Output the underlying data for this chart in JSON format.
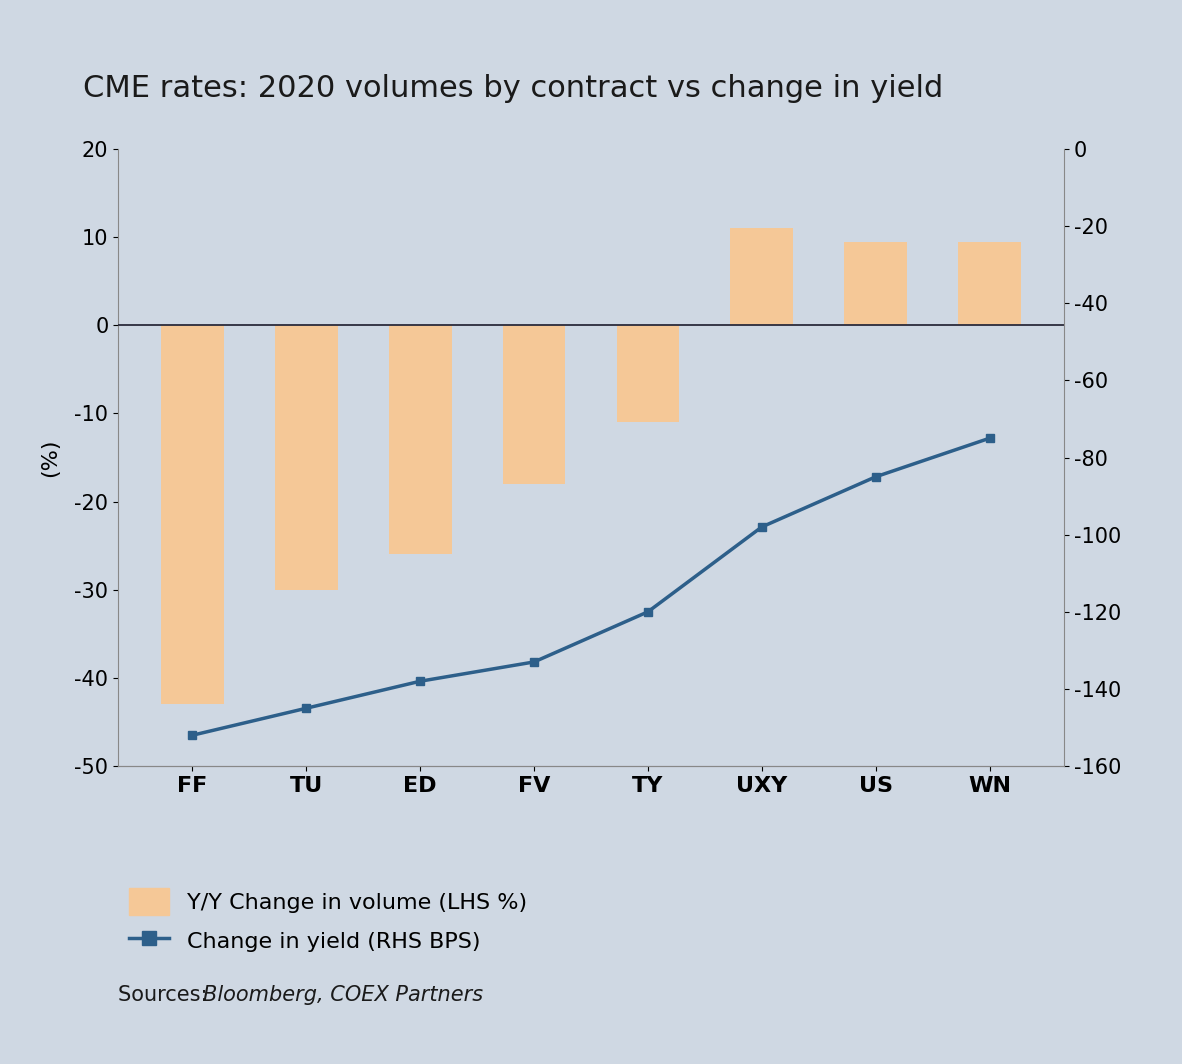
{
  "title": "CME rates: 2020 volumes by contract vs change in yield",
  "categories": [
    "FF",
    "TU",
    "ED",
    "FV",
    "TY",
    "UXY",
    "US",
    "WN"
  ],
  "bar_values": [
    -43,
    -30,
    -26,
    -18,
    -11,
    11,
    9.5,
    9.5
  ],
  "line_values": [
    -152,
    -145,
    -138,
    -133,
    -120,
    -98,
    -85,
    -75
  ],
  "bar_color": "#f5c897",
  "line_color": "#2d5f8a",
  "background_color": "#cfd8e3",
  "ylabel_left": "(%)",
  "ylim_left": [
    -50,
    20
  ],
  "ylim_right": [
    -160,
    0
  ],
  "yticks_left": [
    -50,
    -40,
    -30,
    -20,
    -10,
    0,
    10,
    20
  ],
  "yticks_right": [
    -160,
    -140,
    -120,
    -100,
    -80,
    -60,
    -40,
    -20,
    0
  ],
  "legend_bar_label": "Y/Y Change in volume (LHS %)",
  "legend_line_label": "Change in yield (RHS BPS)",
  "source_normal": "Sources: ",
  "source_italic": "Bloomberg, COEX Partners",
  "title_fontsize": 22,
  "axis_fontsize": 16,
  "tick_fontsize": 15,
  "legend_fontsize": 16,
  "source_fontsize": 15
}
